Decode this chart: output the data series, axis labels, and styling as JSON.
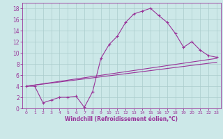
{
  "xlabel": "Windchill (Refroidissement éolien,°C)",
  "bg_color": "#cce8e8",
  "line_color": "#993399",
  "grid_color": "#aacccc",
  "xlim": [
    -0.5,
    23.5
  ],
  "ylim": [
    0,
    19
  ],
  "xticks": [
    0,
    1,
    2,
    3,
    4,
    5,
    6,
    7,
    8,
    9,
    10,
    11,
    12,
    13,
    14,
    15,
    16,
    17,
    18,
    19,
    20,
    21,
    22,
    23
  ],
  "yticks": [
    0,
    2,
    4,
    6,
    8,
    10,
    12,
    14,
    16,
    18
  ],
  "line1_x": [
    0,
    1,
    2,
    3,
    4,
    5,
    6,
    7,
    8,
    9,
    10,
    11,
    12,
    13,
    14,
    15,
    16,
    17,
    18,
    19,
    20,
    21,
    22,
    23
  ],
  "line1_y": [
    4,
    4,
    1,
    1.5,
    2,
    2,
    2.2,
    0.2,
    3,
    9,
    11.5,
    13,
    15.5,
    17,
    17.5,
    18,
    16.7,
    15.5,
    13.5,
    11,
    12,
    10.5,
    9.5,
    9.2
  ],
  "line2_x": [
    0,
    23
  ],
  "line2_y": [
    4,
    9.0
  ],
  "line3_x": [
    0,
    23
  ],
  "line3_y": [
    4,
    8.3
  ],
  "tick_fontsize": 5.5,
  "xlabel_fontsize": 5.5
}
